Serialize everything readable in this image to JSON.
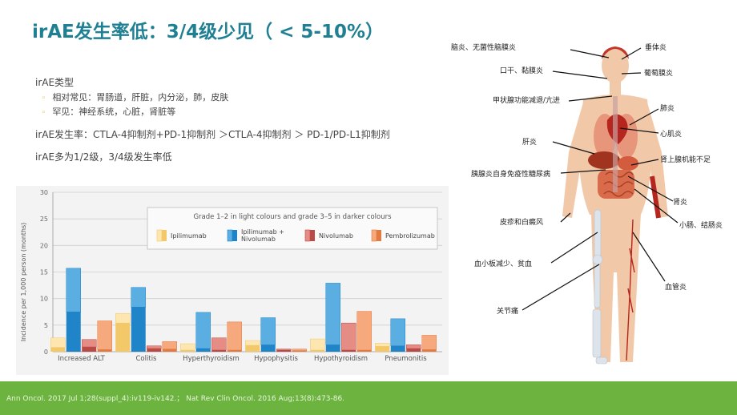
{
  "title": "irAE发生率低：3/4级少见（ < 5-10%）",
  "bullets": {
    "types_heading": "irAE类型",
    "common": "相对常见：胃肠道，肝脏，内分泌，肺，皮肤",
    "rare": "罕见：神经系统，心脏，肾脏等",
    "incidence": "irAE发生率：CTLA-4抑制剂+PD-1抑制剂 ＞CTLA-4抑制剂 ＞ PD-1/PD-L1抑制剂",
    "grade": "irAE多为1/2级，3/4级发生率低"
  },
  "chart_data": {
    "type": "bar",
    "title": "",
    "ylabel": "Incidence per 1,000 person (months)",
    "xlabel": "",
    "ylim": [
      0,
      30
    ],
    "yticks": [
      0,
      5,
      10,
      15,
      20,
      25,
      30
    ],
    "legend_title": "Grade 1–2 in light colours and grade 3–5 in darker colours",
    "categories": [
      "Increased ALT",
      "Colitis",
      "Hyperthyroidism",
      "Hypophysitis",
      "Hypothyroidism",
      "Pneumonitis"
    ],
    "series": [
      {
        "name": "Ipilimumab",
        "light": "#fde6b0",
        "dark": "#f2c868",
        "total": [
          2.6,
          7.2,
          1.5,
          2.1,
          2.4,
          1.6
        ],
        "grade35": [
          0.8,
          5.4,
          0.3,
          1.2,
          0.3,
          1.0
        ]
      },
      {
        "name": "Ipilimumab + Nivolumab",
        "light": "#5aaee2",
        "dark": "#1f84c8",
        "total": [
          15.7,
          12.1,
          7.4,
          6.4,
          12.9,
          6.2
        ],
        "grade35": [
          7.5,
          8.4,
          0.6,
          1.3,
          1.3,
          1.1
        ]
      },
      {
        "name": "Nivolumab",
        "light": "#e58c85",
        "dark": "#b94a45",
        "total": [
          2.3,
          1.1,
          2.6,
          0.5,
          5.4,
          1.3
        ],
        "grade35": [
          0.9,
          0.6,
          0.3,
          0.3,
          0.3,
          0.6
        ]
      },
      {
        "name": "Pembrolizumab",
        "light": "#f5a97c",
        "dark": "#e37a40",
        "total": [
          5.8,
          1.9,
          5.6,
          0.5,
          7.6,
          3.1
        ],
        "grade35": [
          0.4,
          0.5,
          0.3,
          0.2,
          0.3,
          0.4
        ]
      }
    ]
  },
  "anatomy_labels": {
    "encephalitis": "脑炎、无菌性脑膜炎",
    "hypophysitis": "垂体炎",
    "dry_mouth": "口干、黏膜炎",
    "uveitis": "葡萄膜炎",
    "thyroid": "甲状腺功能减退/亢进",
    "pneumonitis": "肺炎",
    "hepatitis": "肝炎",
    "myocarditis": "心肌炎",
    "adrenal": "肾上腺机能不足",
    "diabetes": "胰腺炎自身免疫性糖尿病",
    "nephritis": "肾炎",
    "skin": "皮疹和白癜风",
    "colitis": "小肠、结肠炎",
    "blood": "血小板减少、贫血",
    "vasculitis": "血管炎",
    "arthralgia": "关节痛"
  },
  "footer": "Ann Oncol. 2017 Jul 1;28(suppl_4):iv119-iv142.； Nat Rev Clin Oncol. 2016 Aug;13(8):473-86."
}
